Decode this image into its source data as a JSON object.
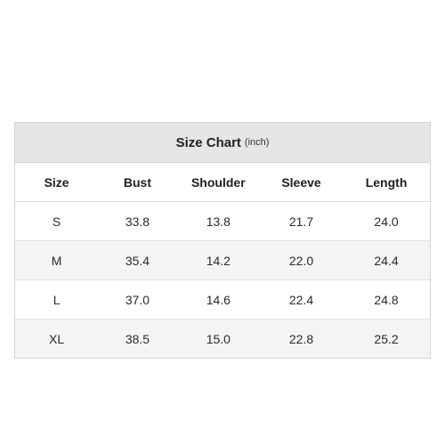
{
  "chart": {
    "title": "Size Chart",
    "unit": "(inch)",
    "headers": [
      "Size",
      "Bust",
      "Shoulder",
      "Sleeve",
      "Length"
    ],
    "rows": [
      [
        "S",
        "33.8",
        "13.8",
        "21.7",
        "24.0"
      ],
      [
        "M",
        "35.4",
        "14.2",
        "22.0",
        "24.4"
      ],
      [
        "L",
        "37.0",
        "14.6",
        "22.4",
        "24.8"
      ],
      [
        "XL",
        "38.5",
        "15.0",
        "22.8",
        "25.2"
      ]
    ]
  }
}
